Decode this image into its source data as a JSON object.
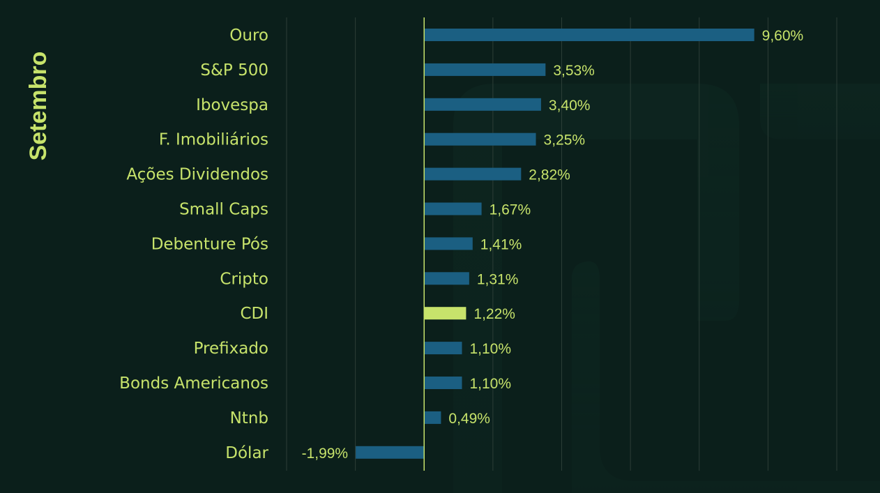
{
  "side_title": "Setembro",
  "colors": {
    "background": "#0b1f1b",
    "label": "#c7e36b",
    "bar": "#1b5f82",
    "highlight_bar": "#c7e36b",
    "gridline": "#2c3e37",
    "zero_line": "#c7e36b"
  },
  "chart_data": {
    "type": "bar",
    "orientation": "horizontal",
    "categories": [
      "Ouro",
      "S&P 500",
      "Ibovespa",
      "F. Imobiliários",
      "Ações Dividendos",
      "Small Caps",
      "Debenture Pós",
      "Cripto",
      "CDI",
      "Prefixado",
      "Bonds Americanos",
      "Ntnb",
      "Dólar"
    ],
    "values": [
      9.6,
      3.53,
      3.4,
      3.25,
      2.82,
      1.67,
      1.41,
      1.31,
      1.22,
      1.1,
      1.1,
      0.49,
      -1.99
    ],
    "value_labels": [
      "9,60%",
      "3,53%",
      "3,40%",
      "3,25%",
      "2,82%",
      "1,67%",
      "1,41%",
      "1,31%",
      "1,22%",
      "1,10%",
      "1,10%",
      "0,49%",
      "-1,99%"
    ],
    "highlight": "CDI",
    "xlim": [
      -4,
      12
    ],
    "grid": true,
    "unit": "%"
  }
}
